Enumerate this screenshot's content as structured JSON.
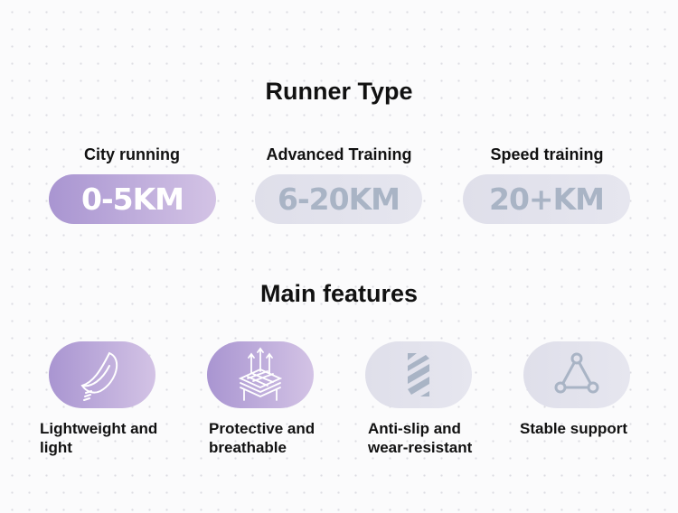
{
  "runner_type": {
    "title": "Runner Type",
    "options": [
      {
        "label": "City running",
        "distance": "0-5KM",
        "selected": true
      },
      {
        "label": "Advanced Training",
        "distance": "6-20KM",
        "selected": false
      },
      {
        "label": "Speed training",
        "distance": "20+KM",
        "selected": false
      }
    ]
  },
  "features": {
    "title": "Main features",
    "items": [
      {
        "label": "Lightweight and light",
        "icon": "feather-icon",
        "highlighted": true
      },
      {
        "label": "Protective and breathable",
        "icon": "breathable-layers-icon",
        "highlighted": true
      },
      {
        "label": "Anti-slip and wear-resistant",
        "icon": "anti-slip-stripes-icon",
        "highlighted": false
      },
      {
        "label": "Stable support",
        "icon": "triangle-nodes-icon",
        "highlighted": false
      }
    ]
  },
  "colors": {
    "accent_start": "#a995d1",
    "accent_end": "#d3c3e5",
    "inactive_bg": "#e2e2ec",
    "inactive_text": "#a9b4c5"
  }
}
